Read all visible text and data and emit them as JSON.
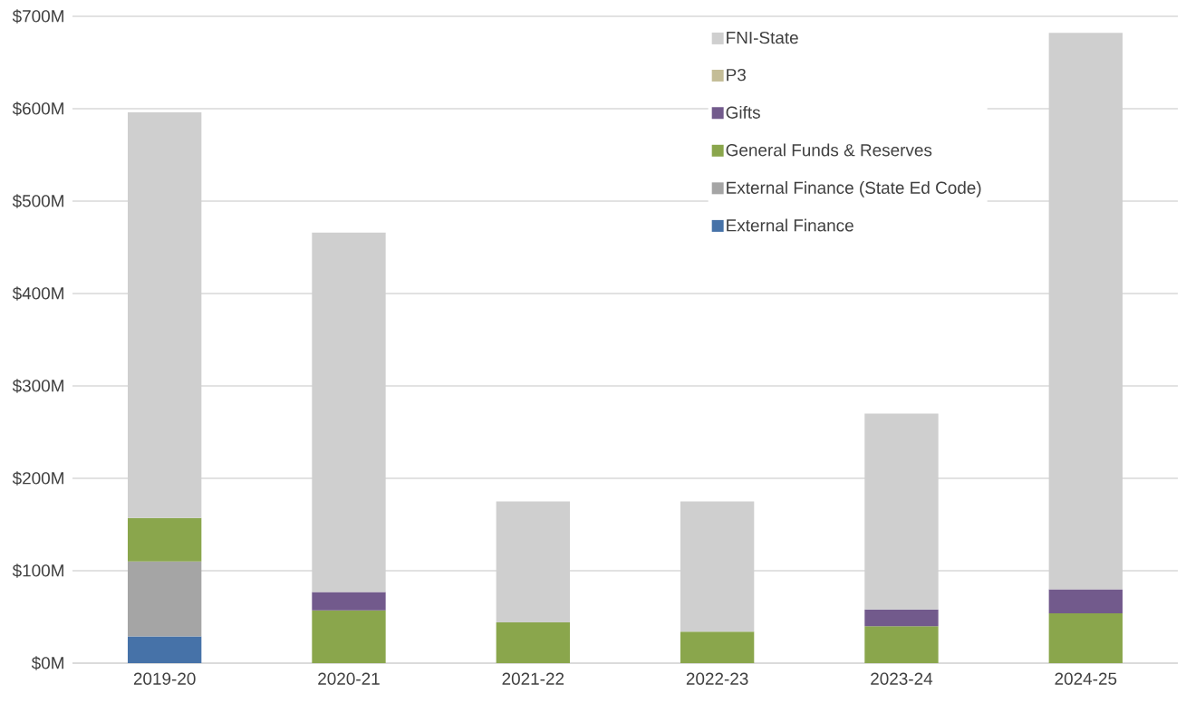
{
  "chart_data": {
    "type": "bar",
    "stacked": true,
    "categories": [
      "2019-20",
      "2020-21",
      "2021-22",
      "2022-23",
      "2023-24",
      "2024-25"
    ],
    "series": [
      {
        "name": "External Finance",
        "color": "#4672a8",
        "values": [
          29,
          null,
          null,
          null,
          null,
          null
        ]
      },
      {
        "name": "External Finance (State Ed Code)",
        "color": "#a5a5a5",
        "values": [
          81,
          null,
          null,
          null,
          null,
          null
        ]
      },
      {
        "name": "General Funds & Reserves",
        "color": "#8aa64c",
        "values": [
          47,
          57,
          44,
          34,
          40,
          54
        ]
      },
      {
        "name": "Gifts",
        "color": "#725a8c",
        "values": [
          null,
          20,
          null,
          null,
          18,
          26
        ]
      },
      {
        "name": "P3",
        "color": "#c4bd97",
        "values": [
          null,
          null,
          null,
          null,
          null,
          null
        ]
      },
      {
        "name": "FNI-State",
        "color": "#cfcfcf",
        "values": [
          439,
          389,
          131,
          141,
          212,
          602
        ]
      }
    ],
    "ylim": [
      0,
      700
    ],
    "yticks": [
      {
        "value": 0,
        "label": "$0M"
      },
      {
        "value": 100,
        "label": "$100M"
      },
      {
        "value": 200,
        "label": "$200M"
      },
      {
        "value": 300,
        "label": "$300M"
      },
      {
        "value": 400,
        "label": "$400M"
      },
      {
        "value": 500,
        "label": "$500M"
      },
      {
        "value": 600,
        "label": "$600M"
      },
      {
        "value": 700,
        "label": "$700M"
      }
    ],
    "grid": "y",
    "legend": "top right"
  }
}
